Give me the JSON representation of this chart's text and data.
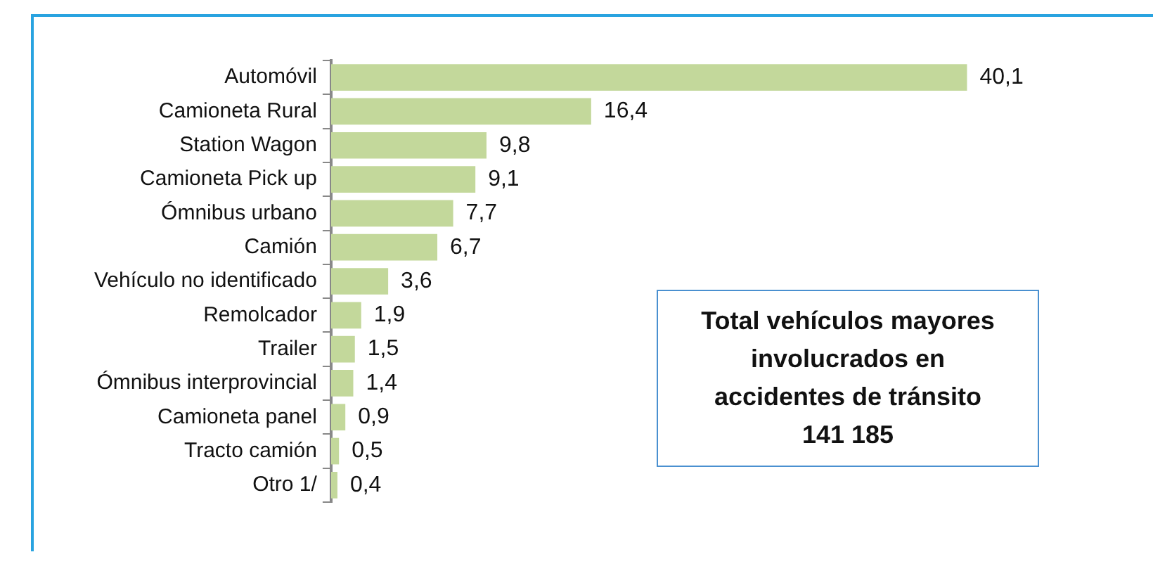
{
  "chart_data": {
    "type": "bar",
    "orientation": "horizontal",
    "categories": [
      "Automóvil",
      "Camioneta Rural",
      "Station Wagon",
      "Camioneta Pick up",
      "Ómnibus urbano",
      "Camión",
      "Vehículo no identificado",
      "Remolcador",
      "Trailer",
      "Ómnibus interprovincial",
      "Camioneta panel",
      "Tracto camión",
      "Otro 1/"
    ],
    "values": [
      40.1,
      16.4,
      9.8,
      9.1,
      7.7,
      6.7,
      3.6,
      1.9,
      1.5,
      1.4,
      0.9,
      0.5,
      0.4
    ],
    "value_labels": [
      "40,1",
      "16,4",
      "9,8",
      "9,1",
      "7,7",
      "6,7",
      "3,6",
      "1,9",
      "1,5",
      "1,4",
      "0,9",
      "0,5",
      "0,4"
    ],
    "color": "#c3d89b",
    "annotations": [
      "Total vehículos mayores\ninvolucrados en\naccidentes de tránsito\n141 185"
    ],
    "grid": false,
    "legend": false
  }
}
